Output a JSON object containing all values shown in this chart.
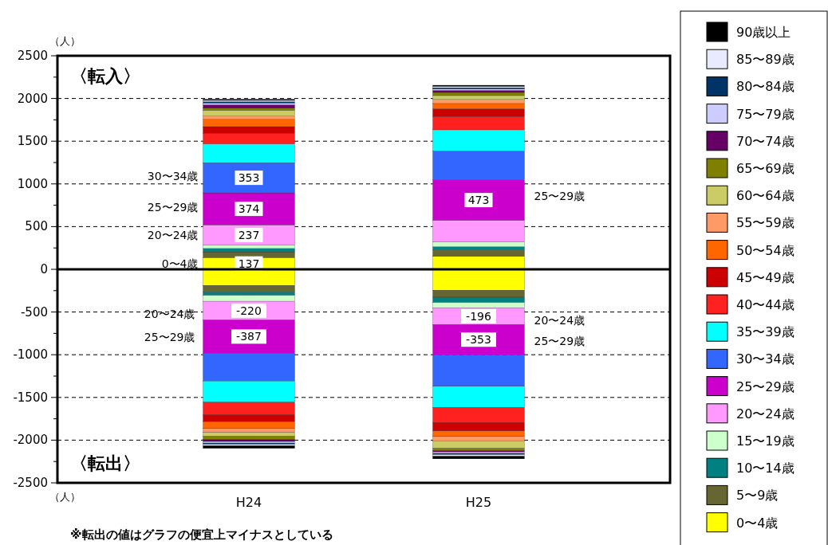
{
  "chart_data": {
    "type": "bar",
    "stacked": true,
    "categories": [
      "H24",
      "H25"
    ],
    "ylim": [
      -2500,
      2500
    ],
    "yticks": [
      -2500,
      {
        "value": -2250,
        "label": null
      },
      -2000,
      {
        "value": -1750,
        "label": null
      },
      -1500,
      {
        "value": -1250,
        "label": null
      },
      -1000,
      {
        "value": -750,
        "label": null
      },
      -500,
      {
        "value": -250,
        "label": null
      },
      0,
      {
        "value": 250,
        "label": null
      },
      500,
      {
        "value": 750,
        "label": null
      },
      1000,
      {
        "value": 1250,
        "label": null
      },
      1500,
      {
        "value": 1750,
        "label": null
      },
      2000,
      {
        "value": 2250,
        "label": null
      },
      2500
    ],
    "grid": "y",
    "legend": "right",
    "series": [
      {
        "name": "0〜4歳",
        "color": "#ffff00",
        "values": [
          137,
          151
        ],
        "value_labels": [
          "137",
          null
        ]
      },
      {
        "name": "5〜9歳",
        "color": "#666633",
        "values": [
          67,
          77
        ]
      },
      {
        "name": "10〜14歳",
        "color": "#008080",
        "values": [
          40,
          37
        ]
      },
      {
        "name": "15〜19歳",
        "color": "#ccffcc",
        "values": [
          40,
          56
        ]
      },
      {
        "name": "20〜24歳",
        "color": "#ff99ff",
        "values": [
          237,
          253
        ],
        "value_labels": [
          "237",
          null
        ]
      },
      {
        "name": "25〜29歳",
        "color": "#cc00cc",
        "values": [
          374,
          473
        ],
        "value_labels": [
          "374",
          "473"
        ]
      },
      {
        "name": "30〜34歳",
        "color": "#3366ff",
        "values": [
          353,
          339
        ],
        "value_labels": [
          "353",
          null
        ]
      },
      {
        "name": "35〜39歳",
        "color": "#00ffff",
        "values": [
          221,
          247
        ]
      },
      {
        "name": "40〜44歳",
        "color": "#ff2020",
        "values": [
          124,
          154
        ]
      },
      {
        "name": "45〜49歳",
        "color": "#cc0000",
        "values": [
          77,
          93
        ]
      },
      {
        "name": "50〜54歳",
        "color": "#ff6600",
        "values": [
          86,
          61
        ]
      },
      {
        "name": "55〜59歳",
        "color": "#ff9966",
        "values": [
          37,
          47
        ]
      },
      {
        "name": "60〜64歳",
        "color": "#cccc66",
        "values": [
          68,
          46
        ]
      },
      {
        "name": "65〜69歳",
        "color": "#808000",
        "values": [
          25,
          37
        ]
      },
      {
        "name": "70〜74歳",
        "color": "#660066",
        "values": [
          40,
          24
        ]
      },
      {
        "name": "75〜79歳",
        "color": "#ccccff",
        "values": [
          21,
          16
        ]
      },
      {
        "name": "80〜84歳",
        "color": "#003366",
        "values": [
          16,
          15
        ]
      },
      {
        "name": "85〜89歳",
        "color": "#eaeaff",
        "values": [
          15,
          16
        ]
      },
      {
        "name": "90歳以上",
        "color": "#000000",
        "values": [
          13,
          13
        ]
      },
      {
        "color": "#ffff00",
        "values": [
          -188,
          -244
        ]
      },
      {
        "color": "#666633",
        "values": [
          -77,
          -83
        ]
      },
      {
        "color": "#008080",
        "values": [
          -40,
          -62
        ]
      },
      {
        "color": "#ccffcc",
        "values": [
          -69,
          -62
        ]
      },
      {
        "color": "#ff99ff",
        "values": [
          -220,
          -196
        ],
        "value_labels": [
          "-220",
          "-196"
        ]
      },
      {
        "color": "#cc00cc",
        "values": [
          -387,
          -353
        ],
        "value_labels": [
          "-387",
          "-353"
        ]
      },
      {
        "color": "#3366ff",
        "values": [
          -328,
          -370
        ]
      },
      {
        "color": "#00ffff",
        "values": [
          -247,
          -247
        ]
      },
      {
        "color": "#ff2020",
        "values": [
          -145,
          -176
        ]
      },
      {
        "color": "#cc0000",
        "values": [
          -83,
          -99
        ]
      },
      {
        "color": "#ff6600",
        "values": [
          -80,
          -65
        ]
      },
      {
        "color": "#ff9966",
        "values": [
          -46,
          -52
        ]
      },
      {
        "color": "#cccc66",
        "values": [
          -44,
          -87
        ]
      },
      {
        "color": "#808000",
        "values": [
          -40,
          -28
        ]
      },
      {
        "color": "#660066",
        "values": [
          -22,
          -15
        ]
      },
      {
        "color": "#ccccff",
        "values": [
          -18,
          -16
        ]
      },
      {
        "color": "#003366",
        "values": [
          -15,
          -15
        ]
      },
      {
        "color": "#eaeaff",
        "values": [
          -16,
          -18
        ]
      },
      {
        "color": "#000000",
        "values": [
          -31,
          -31
        ]
      }
    ],
    "annotations": [
      "（人）",
      "〈転入〉",
      "〈転出〉",
      "（人）",
      "※転出の値はグラフの便宜上マイナスとしている",
      "30〜34歳",
      "25〜29歳",
      "20〜24歳",
      "0〜4歳",
      "20〜24歳",
      "25〜29歳",
      "25〜29歳",
      "20〜24歳",
      "25〜29歳"
    ]
  }
}
